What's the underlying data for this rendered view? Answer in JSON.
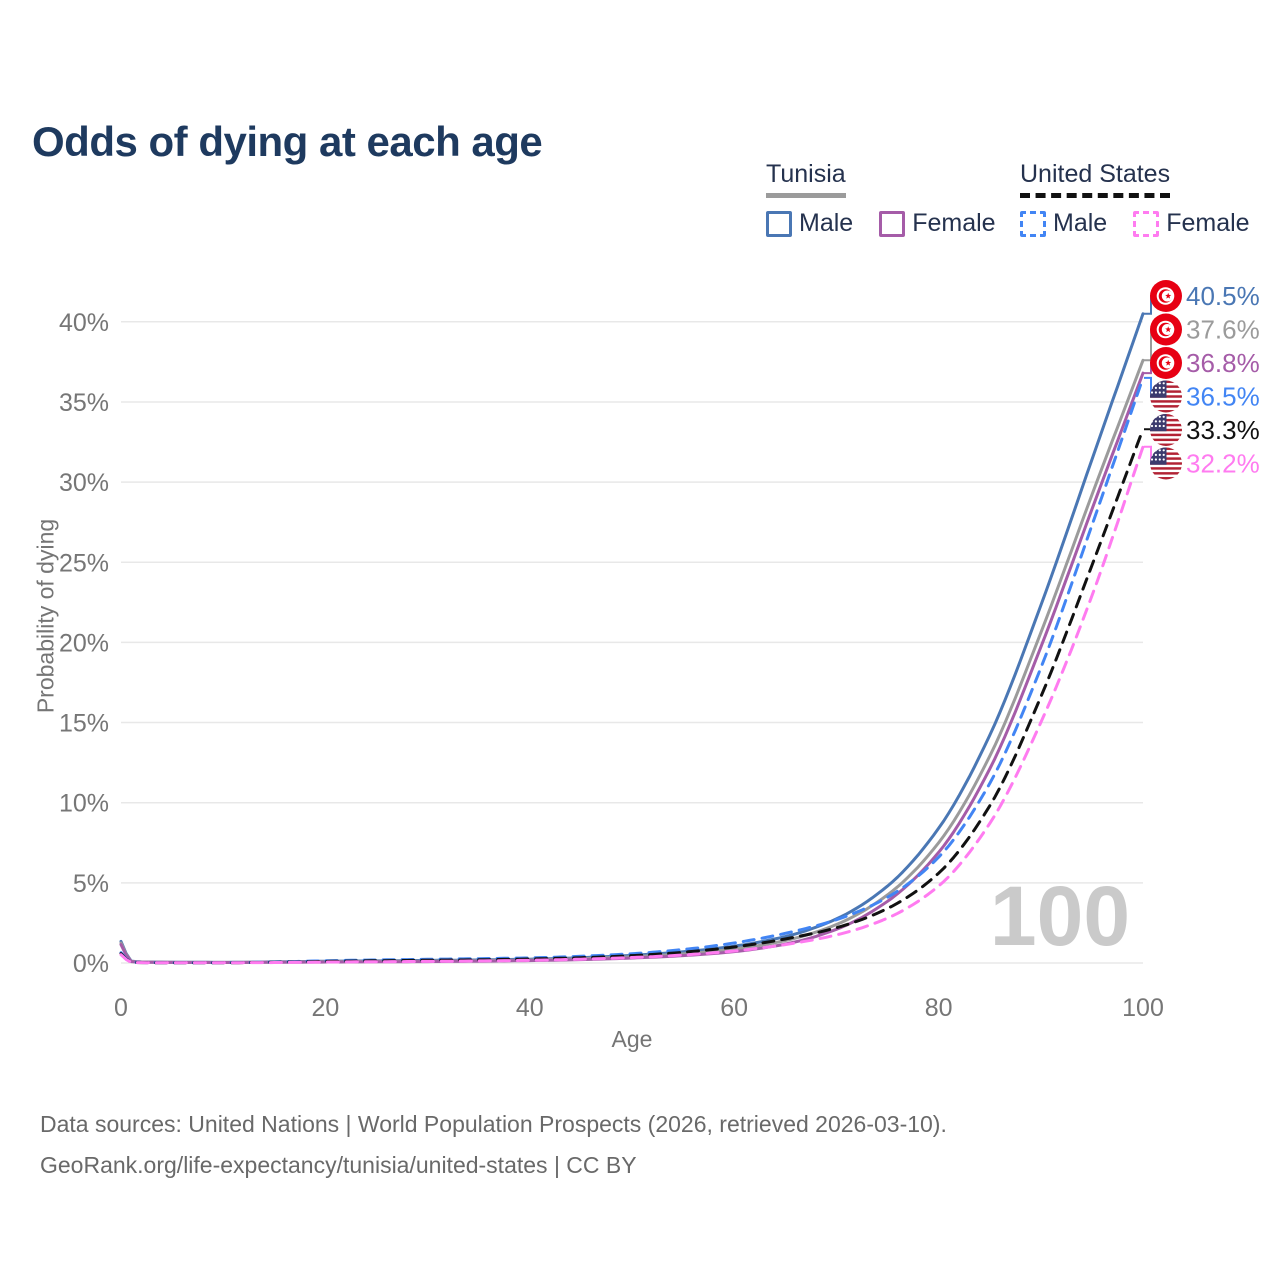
{
  "title": "Odds of dying at each age",
  "legend": {
    "tunisia": {
      "header": "Tunisia",
      "male": "Male",
      "female": "Female"
    },
    "united_states": {
      "header": "United States",
      "male": "Male",
      "female": "Female"
    }
  },
  "footer": {
    "line1": "Data sources: United Nations | World Population Prospects (2026, retrieved 2026-03-10).",
    "line2": "GeoRank.org/life-expectancy/tunisia/united-states | CC BY"
  },
  "chart_data": {
    "type": "line",
    "title": "Odds of dying at each age",
    "xlabel": "Age",
    "ylabel": "Probability of dying",
    "xlim": [
      0,
      100
    ],
    "ylim": [
      0,
      42
    ],
    "x_ticks": [
      0,
      20,
      40,
      60,
      80,
      100
    ],
    "y_tick_values": [
      0,
      5,
      10,
      15,
      20,
      25,
      30,
      35,
      40
    ],
    "y_tick_labels": [
      "0%",
      "5%",
      "10%",
      "15%",
      "20%",
      "25%",
      "30%",
      "35%",
      "40%"
    ],
    "grid": "horizontal",
    "age_watermark": "100",
    "legend_position": "top-right",
    "ages": [
      0,
      1,
      2,
      5,
      10,
      15,
      20,
      25,
      30,
      35,
      40,
      45,
      50,
      55,
      60,
      65,
      70,
      75,
      80,
      85,
      90,
      95,
      100
    ],
    "series": [
      {
        "id": "tunisia-male",
        "name": "Tunisia — Male",
        "country": "Tunisia",
        "sex": "Male",
        "style": "solid",
        "color": "#4a77b4",
        "flag": "tunisia",
        "end_value": 40.5,
        "end_label": "40.5%",
        "values": [
          1.35,
          0.12,
          0.07,
          0.05,
          0.04,
          0.07,
          0.11,
          0.13,
          0.16,
          0.19,
          0.24,
          0.33,
          0.48,
          0.7,
          1.05,
          1.65,
          2.75,
          4.8,
          8.4,
          14.2,
          22.3,
          31.4,
          40.5
        ]
      },
      {
        "id": "tunisia-both",
        "name": "Tunisia — Both sexes",
        "country": "Tunisia",
        "sex": "Both",
        "style": "solid",
        "color": "#9b9b9b",
        "flag": "tunisia",
        "end_value": 37.6,
        "end_label": "37.6%",
        "values": [
          1.25,
          0.1,
          0.06,
          0.04,
          0.035,
          0.055,
          0.085,
          0.1,
          0.12,
          0.15,
          0.19,
          0.27,
          0.39,
          0.57,
          0.87,
          1.4,
          2.4,
          4.25,
          7.5,
          12.9,
          20.6,
          29.2,
          37.6
        ]
      },
      {
        "id": "tunisia-female",
        "name": "Tunisia — Female",
        "country": "Tunisia",
        "sex": "Female",
        "style": "solid",
        "color": "#a55ca8",
        "flag": "tunisia",
        "end_value": 36.8,
        "end_label": "36.8%",
        "values": [
          1.15,
          0.09,
          0.05,
          0.035,
          0.03,
          0.045,
          0.06,
          0.075,
          0.09,
          0.11,
          0.15,
          0.21,
          0.31,
          0.46,
          0.71,
          1.18,
          2.1,
          3.85,
          6.9,
          12.1,
          19.7,
          28.3,
          36.8
        ]
      },
      {
        "id": "us-male",
        "name": "United States — Male",
        "country": "United States",
        "sex": "Male",
        "style": "dashed",
        "color": "#4285f4",
        "flag": "us",
        "end_value": 36.5,
        "end_label": "36.5%",
        "values": [
          0.64,
          0.05,
          0.03,
          0.02,
          0.02,
          0.06,
          0.14,
          0.19,
          0.23,
          0.27,
          0.32,
          0.42,
          0.58,
          0.84,
          1.25,
          1.85,
          2.7,
          4.1,
          6.6,
          11.2,
          18.4,
          27.3,
          36.5
        ]
      },
      {
        "id": "us-both",
        "name": "United States — Both sexes",
        "country": "United States",
        "sex": "Both",
        "style": "dashed",
        "color": "#111111",
        "flag": "us",
        "end_value": 33.3,
        "end_label": "33.3%",
        "values": [
          0.58,
          0.045,
          0.025,
          0.018,
          0.017,
          0.045,
          0.1,
          0.14,
          0.17,
          0.2,
          0.25,
          0.33,
          0.46,
          0.67,
          1.0,
          1.5,
          2.2,
          3.4,
          5.6,
          9.8,
          16.6,
          24.8,
          33.3
        ]
      },
      {
        "id": "us-female",
        "name": "United States — Female",
        "country": "United States",
        "sex": "Female",
        "style": "dashed",
        "color": "#ff7bf0",
        "flag": "us",
        "end_value": 32.2,
        "end_label": "32.2%",
        "values": [
          0.52,
          0.04,
          0.022,
          0.016,
          0.015,
          0.03,
          0.06,
          0.08,
          0.1,
          0.13,
          0.17,
          0.24,
          0.34,
          0.5,
          0.75,
          1.15,
          1.75,
          2.8,
          4.8,
          8.7,
          15.0,
          22.9,
          32.2
        ]
      }
    ],
    "colors": {
      "tunisia_male": "#4a77b4",
      "tunisia_both": "#9b9b9b",
      "tunisia_female": "#a55ca8",
      "us_male": "#4285f4",
      "us_both": "#111111",
      "us_female": "#ff7bf0",
      "grid": "#e8e8e8",
      "tick_text": "#767676",
      "watermark": "#cacaca",
      "title_text": "#1e3a5f"
    }
  }
}
